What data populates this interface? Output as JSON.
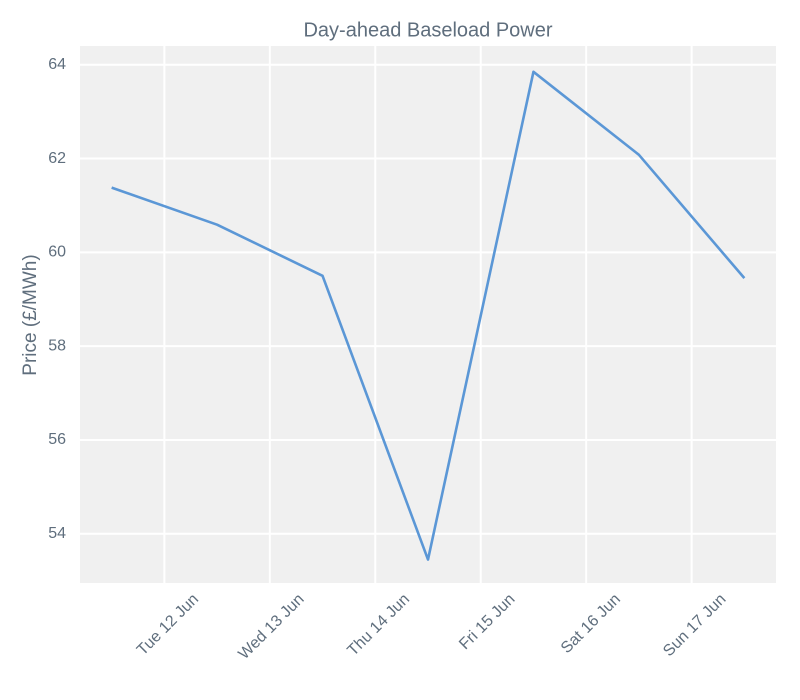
{
  "chart_data": {
    "type": "line",
    "title": "Day-ahead Baseload Power",
    "y_label": "Price (£/MWh)",
    "x": [
      11.5,
      12.5,
      13.5,
      14.5,
      15.5,
      16.5,
      17.5
    ],
    "series": [
      {
        "name": "Price",
        "color": "#5b97d6",
        "values": [
          61.38,
          60.59,
          59.5,
          53.45,
          63.85,
          62.08,
          59.45
        ]
      }
    ],
    "xlim": [
      11.2,
      17.8
    ],
    "xticks": [
      {
        "value": 12,
        "label": "Tue 12 Jun"
      },
      {
        "value": 13,
        "label": "Wed 13 Jun"
      },
      {
        "value": 14,
        "label": "Thu 14 Jun"
      },
      {
        "value": 15,
        "label": "Fri 15 Jun"
      },
      {
        "value": 16,
        "label": "Sat 16 Jun"
      },
      {
        "value": 17,
        "label": "Sun 17 Jun"
      }
    ],
    "ylim": [
      52.95,
      64.4
    ],
    "yticks": [
      54,
      56,
      58,
      60,
      62,
      64
    ],
    "grid": true
  }
}
